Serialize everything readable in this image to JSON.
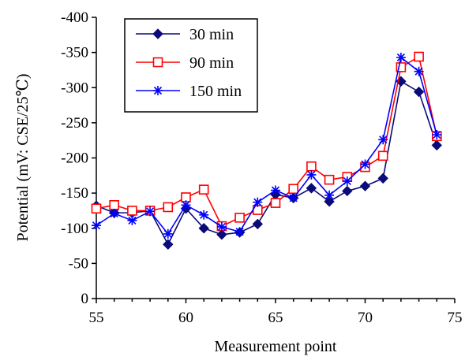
{
  "chart_data": {
    "type": "line",
    "xlabel": "Measurement point",
    "ylabel": "Potential (mV: CSE/25℃)",
    "xlim": [
      55,
      75
    ],
    "ylim": [
      0,
      -400
    ],
    "y_reversed": true,
    "x_ticks": [
      55,
      60,
      65,
      70,
      75
    ],
    "x_tick_labels": [
      "55",
      "60",
      "65",
      "70",
      "75"
    ],
    "y_ticks": [
      0,
      -50,
      -100,
      -150,
      -200,
      -250,
      -300,
      -350,
      -400
    ],
    "y_tick_labels": [
      "0",
      "-50",
      "-100",
      "-150",
      "-200",
      "-250",
      "-300",
      "-350",
      "-400"
    ],
    "grid": false,
    "legend_position": "top-left",
    "x": [
      55,
      56,
      57,
      58,
      59,
      60,
      61,
      62,
      63,
      64,
      65,
      66,
      67,
      68,
      69,
      70,
      71,
      72,
      73,
      74
    ],
    "series": [
      {
        "name": "30 min",
        "color": "#0a0a78",
        "marker": "diamond",
        "values": [
          -132,
          -122,
          -122,
          -125,
          -77,
          -128,
          -100,
          -91,
          -94,
          -106,
          -148,
          -143,
          -157,
          -138,
          -153,
          -160,
          -171,
          -309,
          -294,
          -218
        ]
      },
      {
        "name": "90 min",
        "color": "#ff0000",
        "marker": "square",
        "values": [
          -128,
          -133,
          -125,
          -125,
          -130,
          -144,
          -155,
          -103,
          -115,
          -126,
          -136,
          -156,
          -188,
          -169,
          -173,
          -187,
          -203,
          -329,
          -344,
          -231
        ]
      },
      {
        "name": "150 min",
        "color": "#0000ff",
        "marker": "asterisk",
        "values": [
          -104,
          -121,
          -111,
          -124,
          -92,
          -133,
          -119,
          -102,
          -95,
          -137,
          -154,
          -143,
          -176,
          -147,
          -167,
          -191,
          -226,
          -343,
          -323,
          -233
        ]
      }
    ]
  }
}
